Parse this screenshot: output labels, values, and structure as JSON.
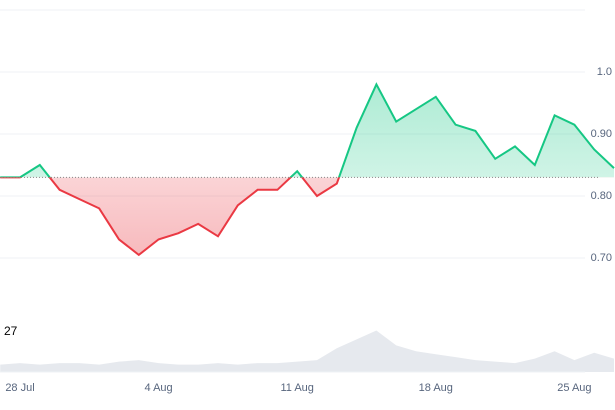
{
  "chart_data": {
    "type": "line",
    "categories": [
      null,
      "28 Jul",
      null,
      null,
      null,
      null,
      null,
      null,
      "4 Aug",
      null,
      null,
      null,
      null,
      null,
      null,
      "11 Aug",
      null,
      null,
      null,
      null,
      null,
      null,
      "18 Aug",
      null,
      null,
      null,
      null,
      null,
      null,
      "25 Aug",
      null,
      null
    ],
    "values": [
      0.83,
      0.83,
      0.85,
      0.81,
      0.795,
      0.78,
      0.73,
      0.705,
      0.73,
      0.74,
      0.755,
      0.735,
      0.785,
      0.81,
      0.81,
      0.84,
      0.8,
      0.82,
      0.91,
      0.98,
      0.92,
      0.94,
      0.96,
      0.915,
      0.905,
      0.86,
      0.88,
      0.85,
      0.93,
      0.915,
      0.875,
      0.845
    ],
    "baseline": 0.83,
    "up_color": "#16c784",
    "down_color": "#ea3943",
    "ylim": [
      0.6,
      1.1
    ],
    "yticks": [
      {
        "value": 0.7,
        "label": "0.70"
      },
      {
        "value": 0.8,
        "label": "0.80"
      },
      {
        "value": 0.9,
        "label": "0.90"
      },
      {
        "value": 1,
        "label": "1.0"
      }
    ],
    "grid": true,
    "volume": {
      "values": [
        5,
        6,
        5,
        6,
        6,
        5,
        7,
        8,
        6,
        5,
        5,
        6,
        5,
        6,
        6,
        7,
        8,
        16,
        22,
        28,
        18,
        14,
        12,
        10,
        8,
        7,
        6,
        9,
        14,
        8,
        13,
        9
      ],
      "color": "#e6e9ee",
      "ylim": [
        0,
        27
      ],
      "yticks": [
        27
      ]
    }
  }
}
